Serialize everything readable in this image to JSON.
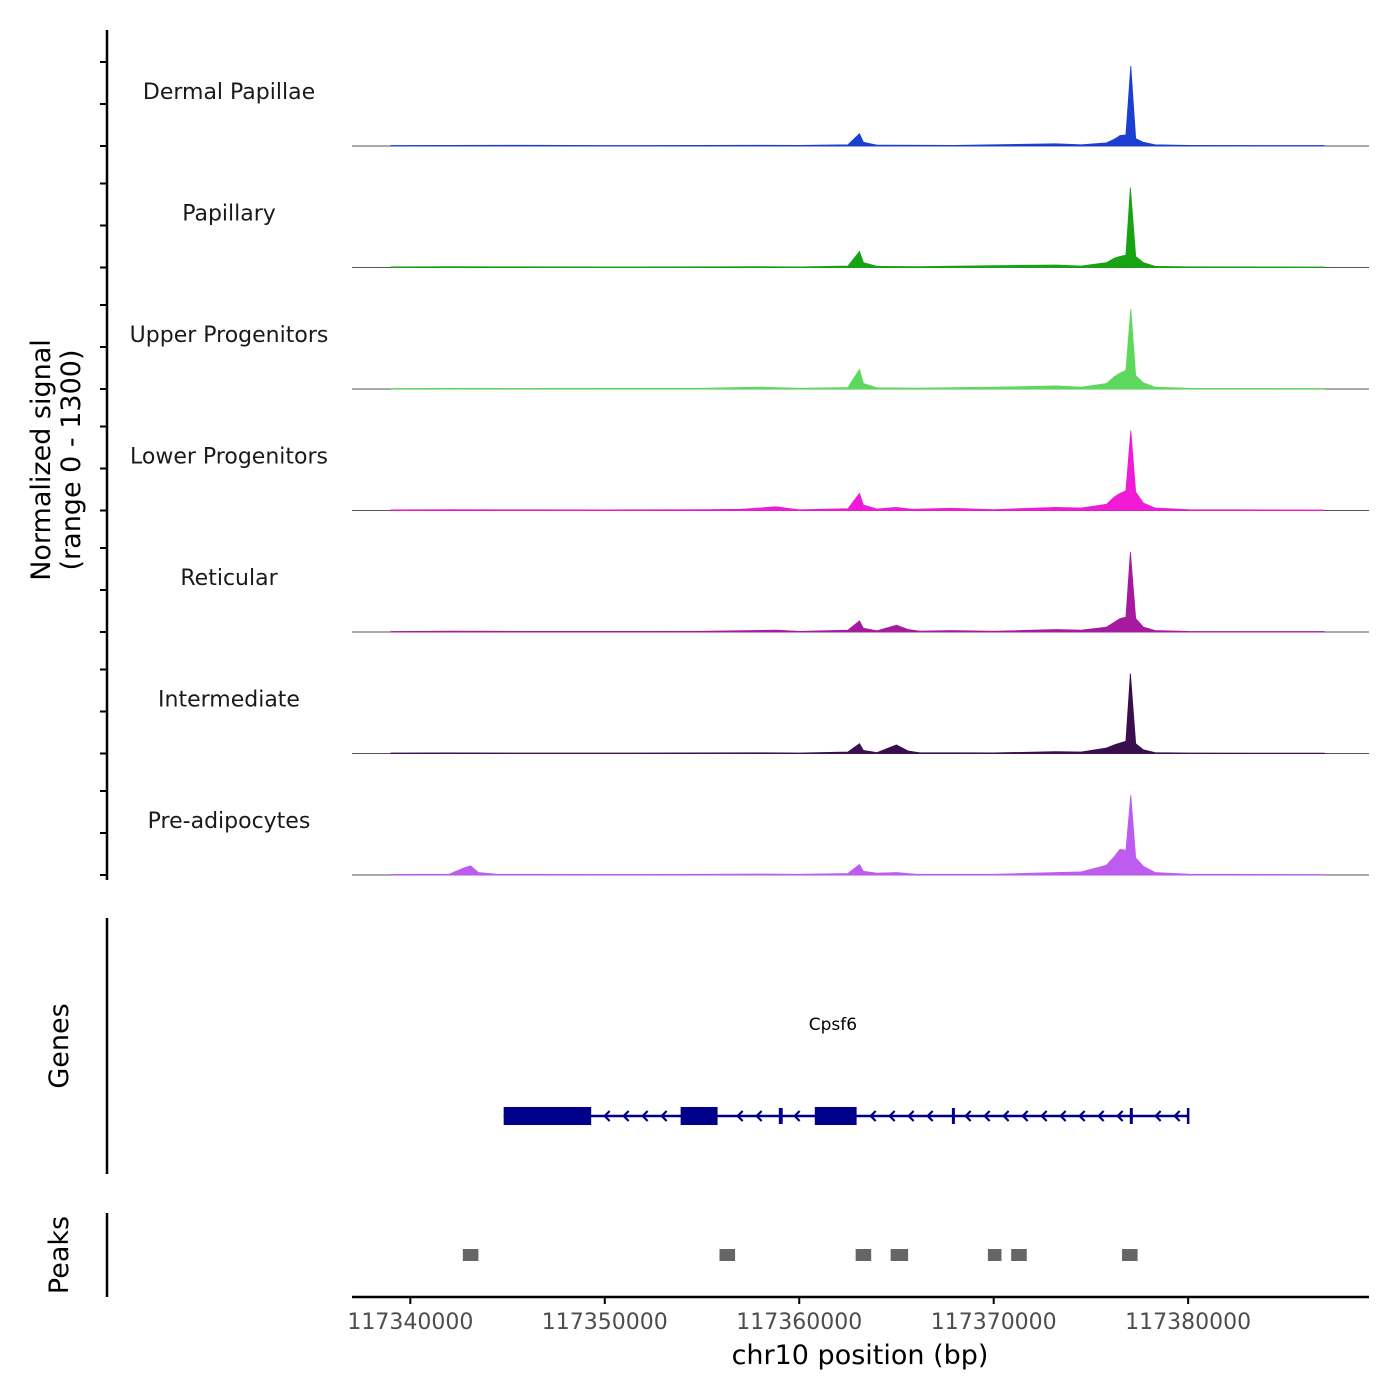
{
  "chart_data": {
    "type": "area",
    "title": "",
    "ylabel_line1": "Normalized signal",
    "ylabel_line2": "(range 0 - 1300)",
    "ylim": [
      0,
      1300
    ],
    "xlabel": "chr10 position (bp)",
    "xlim": [
      117337000,
      117389300
    ],
    "x_ticks": [
      117340000,
      117350000,
      117360000,
      117370000,
      117380000
    ],
    "x_tick_labels": [
      "117340000",
      "117350000",
      "117360000",
      "117370000",
      "117380000"
    ],
    "series": [
      {
        "name": "Dermal Papillae",
        "color": "#1a3fd1",
        "points": [
          [
            117339000,
            8
          ],
          [
            117342000,
            10
          ],
          [
            117346000,
            12
          ],
          [
            117350000,
            8
          ],
          [
            117355000,
            10
          ],
          [
            117358000,
            12
          ],
          [
            117360000,
            10
          ],
          [
            117362500,
            20
          ],
          [
            117363100,
            200
          ],
          [
            117363300,
            60
          ],
          [
            117364000,
            15
          ],
          [
            117368000,
            10
          ],
          [
            117373200,
            35
          ],
          [
            117374500,
            20
          ],
          [
            117375800,
            50
          ],
          [
            117376200,
            110
          ],
          [
            117376500,
            170
          ],
          [
            117376800,
            180
          ],
          [
            117377050,
            1300
          ],
          [
            117377300,
            120
          ],
          [
            117377700,
            60
          ],
          [
            117378300,
            20
          ],
          [
            117380000,
            10
          ],
          [
            117384000,
            8
          ],
          [
            117387000,
            8
          ]
        ]
      },
      {
        "name": "Papillary",
        "color": "#18a412",
        "points": [
          [
            117339000,
            10
          ],
          [
            117342000,
            14
          ],
          [
            117346000,
            12
          ],
          [
            117350000,
            10
          ],
          [
            117355000,
            12
          ],
          [
            117358000,
            14
          ],
          [
            117360000,
            10
          ],
          [
            117362500,
            25
          ],
          [
            117363100,
            260
          ],
          [
            117363300,
            80
          ],
          [
            117364000,
            20
          ],
          [
            117366000,
            15
          ],
          [
            117370000,
            30
          ],
          [
            117373200,
            40
          ],
          [
            117374500,
            25
          ],
          [
            117375800,
            80
          ],
          [
            117376200,
            150
          ],
          [
            117376500,
            180
          ],
          [
            117376800,
            200
          ],
          [
            117377030,
            1300
          ],
          [
            117377300,
            180
          ],
          [
            117377700,
            80
          ],
          [
            117378300,
            20
          ],
          [
            117380000,
            12
          ],
          [
            117384000,
            10
          ],
          [
            117387000,
            8
          ]
        ]
      },
      {
        "name": "Upper Progenitors",
        "color": "#5cd85c",
        "points": [
          [
            117339000,
            8
          ],
          [
            117342000,
            12
          ],
          [
            117346000,
            10
          ],
          [
            117350000,
            12
          ],
          [
            117355000,
            12
          ],
          [
            117358000,
            30
          ],
          [
            117360000,
            12
          ],
          [
            117362500,
            25
          ],
          [
            117363100,
            320
          ],
          [
            117363300,
            90
          ],
          [
            117364000,
            20
          ],
          [
            117366000,
            15
          ],
          [
            117370000,
            30
          ],
          [
            117373200,
            50
          ],
          [
            117374500,
            30
          ],
          [
            117375800,
            90
          ],
          [
            117376200,
            200
          ],
          [
            117376500,
            260
          ],
          [
            117376800,
            300
          ],
          [
            117377050,
            1300
          ],
          [
            117377300,
            220
          ],
          [
            117377700,
            100
          ],
          [
            117378300,
            30
          ],
          [
            117380000,
            12
          ],
          [
            117384000,
            10
          ],
          [
            117387000,
            8
          ]
        ]
      },
      {
        "name": "Lower Progenitors",
        "color": "#f01ad7",
        "points": [
          [
            117339000,
            10
          ],
          [
            117342000,
            14
          ],
          [
            117346000,
            12
          ],
          [
            117350000,
            10
          ],
          [
            117355000,
            14
          ],
          [
            117357000,
            20
          ],
          [
            117358800,
            60
          ],
          [
            117360000,
            12
          ],
          [
            117362500,
            30
          ],
          [
            117363100,
            280
          ],
          [
            117363300,
            90
          ],
          [
            117364000,
            25
          ],
          [
            117365000,
            50
          ],
          [
            117365800,
            20
          ],
          [
            117367800,
            35
          ],
          [
            117370000,
            15
          ],
          [
            117373200,
            50
          ],
          [
            117374500,
            40
          ],
          [
            117375800,
            100
          ],
          [
            117376200,
            220
          ],
          [
            117376500,
            280
          ],
          [
            117376800,
            320
          ],
          [
            117377050,
            1300
          ],
          [
            117377300,
            300
          ],
          [
            117377700,
            120
          ],
          [
            117378300,
            40
          ],
          [
            117380000,
            15
          ],
          [
            117384000,
            10
          ],
          [
            117387000,
            8
          ]
        ]
      },
      {
        "name": "Reticular",
        "color": "#a61aa0",
        "points": [
          [
            117339000,
            8
          ],
          [
            117342000,
            14
          ],
          [
            117346000,
            10
          ],
          [
            117350000,
            10
          ],
          [
            117355000,
            12
          ],
          [
            117358800,
            30
          ],
          [
            117360000,
            10
          ],
          [
            117362500,
            30
          ],
          [
            117363100,
            180
          ],
          [
            117363300,
            60
          ],
          [
            117364000,
            20
          ],
          [
            117365000,
            110
          ],
          [
            117365600,
            40
          ],
          [
            117366200,
            15
          ],
          [
            117367800,
            25
          ],
          [
            117370000,
            12
          ],
          [
            117373200,
            40
          ],
          [
            117374500,
            30
          ],
          [
            117375800,
            80
          ],
          [
            117376200,
            160
          ],
          [
            117376500,
            220
          ],
          [
            117376800,
            240
          ],
          [
            117377030,
            1300
          ],
          [
            117377300,
            220
          ],
          [
            117377700,
            80
          ],
          [
            117378300,
            25
          ],
          [
            117380000,
            10
          ],
          [
            117384000,
            8
          ],
          [
            117387000,
            8
          ]
        ]
      },
      {
        "name": "Intermediate",
        "color": "#3a0d4e",
        "points": [
          [
            117339000,
            8
          ],
          [
            117342000,
            10
          ],
          [
            117346000,
            8
          ],
          [
            117350000,
            8
          ],
          [
            117355000,
            10
          ],
          [
            117358000,
            12
          ],
          [
            117360000,
            8
          ],
          [
            117362500,
            25
          ],
          [
            117363100,
            160
          ],
          [
            117363300,
            50
          ],
          [
            117364000,
            15
          ],
          [
            117365000,
            140
          ],
          [
            117365600,
            40
          ],
          [
            117366200,
            12
          ],
          [
            117368000,
            12
          ],
          [
            117370000,
            10
          ],
          [
            117373200,
            30
          ],
          [
            117374500,
            25
          ],
          [
            117375800,
            90
          ],
          [
            117376200,
            140
          ],
          [
            117376500,
            170
          ],
          [
            117376800,
            200
          ],
          [
            117377030,
            1300
          ],
          [
            117377300,
            160
          ],
          [
            117377700,
            60
          ],
          [
            117378300,
            15
          ],
          [
            117380000,
            8
          ],
          [
            117384000,
            6
          ],
          [
            117387000,
            6
          ]
        ]
      },
      {
        "name": "Pre-adipocytes",
        "color": "#be5cf0",
        "points": [
          [
            117339000,
            10
          ],
          [
            117342000,
            14
          ],
          [
            117342800,
            120
          ],
          [
            117343100,
            150
          ],
          [
            117343500,
            40
          ],
          [
            117344500,
            12
          ],
          [
            117346000,
            12
          ],
          [
            117350000,
            10
          ],
          [
            117355000,
            12
          ],
          [
            117358000,
            16
          ],
          [
            117360000,
            12
          ],
          [
            117362500,
            25
          ],
          [
            117363100,
            170
          ],
          [
            117363300,
            60
          ],
          [
            117364000,
            30
          ],
          [
            117365000,
            40
          ],
          [
            117366000,
            12
          ],
          [
            117370000,
            12
          ],
          [
            117373200,
            40
          ],
          [
            117374500,
            50
          ],
          [
            117375800,
            160
          ],
          [
            117376200,
            300
          ],
          [
            117376500,
            420
          ],
          [
            117376800,
            400
          ],
          [
            117377050,
            1300
          ],
          [
            117377300,
            280
          ],
          [
            117377700,
            140
          ],
          [
            117378300,
            40
          ],
          [
            117380000,
            14
          ],
          [
            117384000,
            10
          ],
          [
            117387000,
            8
          ]
        ]
      }
    ],
    "genes_label": "Genes",
    "gene": {
      "name": "Cpsf6",
      "strand": "-",
      "color": "#00008b",
      "start": 117344800,
      "end": 117380000,
      "exons": [
        [
          117344800,
          117349300
        ],
        [
          117353900,
          117355800
        ],
        [
          117358950,
          117359150
        ],
        [
          117360800,
          117362950
        ],
        [
          117367850,
          117368000
        ],
        [
          117377000,
          117377100
        ]
      ]
    },
    "peaks_label": "Peaks",
    "peaks": [
      [
        117342700,
        117343500
      ],
      [
        117355900,
        117356700
      ],
      [
        117362900,
        117363700
      ],
      [
        117364700,
        117365600
      ],
      [
        117369700,
        117370400
      ],
      [
        117370900,
        117371700
      ],
      [
        117376600,
        117377400
      ]
    ]
  }
}
